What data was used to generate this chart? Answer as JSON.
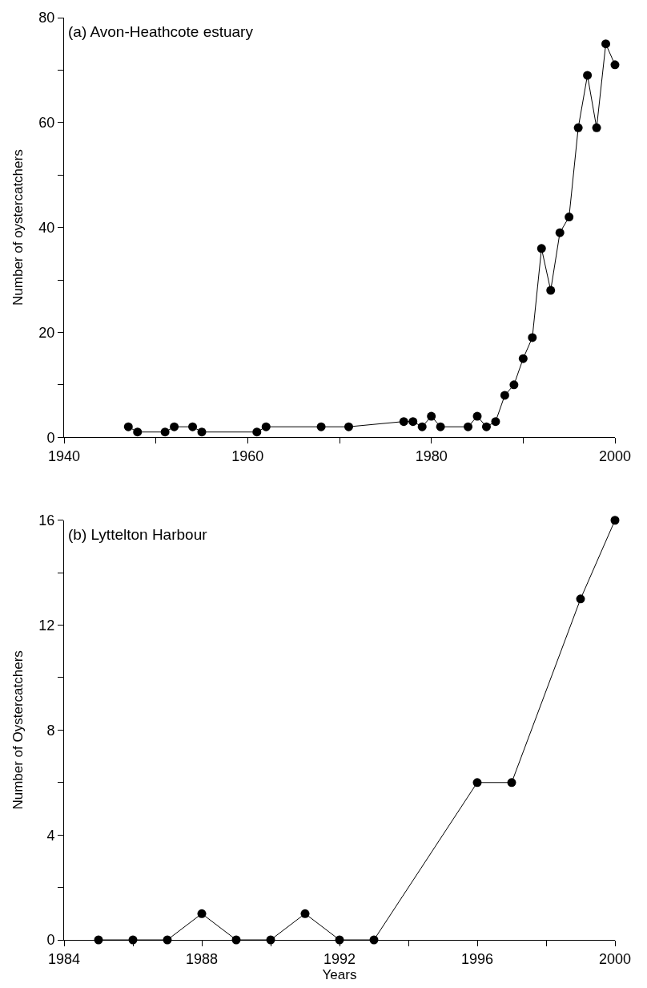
{
  "chart_data": [
    {
      "type": "line",
      "title": "(a) Avon-Heathcote estuary",
      "ylabel": "Number of oystercatchers",
      "marker": "circle",
      "line_style": "solid",
      "x": [
        1947,
        1948,
        1951,
        1952,
        1954,
        1955,
        1961,
        1962,
        1968,
        1971,
        1977,
        1978,
        1979,
        1980,
        1981,
        1984,
        1985,
        1986,
        1987,
        1988,
        1989,
        1990,
        1991,
        1992,
        1993,
        1994,
        1995,
        1996,
        1997,
        1998,
        1999,
        2000
      ],
      "series": [
        {
          "color": "#000000",
          "values": [
            2,
            1,
            1,
            2,
            2,
            1,
            1,
            2,
            2,
            2,
            3,
            3,
            2,
            4,
            2,
            2,
            4,
            2,
            3,
            8,
            10,
            15,
            19,
            36,
            28,
            39,
            42,
            59,
            69,
            59,
            75,
            71
          ]
        }
      ],
      "xlim": [
        1940,
        2000
      ],
      "xticks": [
        1940,
        {
          "value": 1950,
          "label": null
        },
        1960,
        {
          "value": 1970,
          "label": null
        },
        1980,
        {
          "value": 1990,
          "label": null
        },
        2000
      ],
      "ylim": [
        0,
        80
      ],
      "yticks": [
        0,
        {
          "value": 10,
          "label": null
        },
        20,
        {
          "value": 30,
          "label": null
        },
        40,
        {
          "value": 50,
          "label": null
        },
        60,
        {
          "value": 70,
          "label": null
        },
        80
      ]
    },
    {
      "type": "line",
      "title": "(b) Lyttelton Harbour",
      "xlabel": "Years",
      "ylabel": "Number of Oystercatchers",
      "marker": "circle",
      "line_style": "solid",
      "x": [
        1985,
        1986,
        1987,
        1988,
        1989,
        1990,
        1991,
        1992,
        1993,
        1996,
        1997,
        1999,
        2000
      ],
      "series": [
        {
          "color": "#000000",
          "values": [
            0,
            0,
            0,
            1,
            0,
            0,
            1,
            0,
            0,
            6,
            6,
            13,
            16
          ]
        }
      ],
      "xlim": [
        1984,
        2000
      ],
      "xticks": [
        1984,
        {
          "value": 1986,
          "label": null
        },
        1988,
        {
          "value": 1990,
          "label": null
        },
        1992,
        {
          "value": 1994,
          "label": null
        },
        1996,
        {
          "value": 1998,
          "label": null
        },
        2000
      ],
      "ylim": [
        0,
        16
      ],
      "yticks": [
        0,
        {
          "value": 2,
          "label": null
        },
        4,
        {
          "value": 6,
          "label": null
        },
        8,
        {
          "value": 10,
          "label": null
        },
        12,
        {
          "value": 14,
          "label": null
        },
        16
      ]
    }
  ]
}
